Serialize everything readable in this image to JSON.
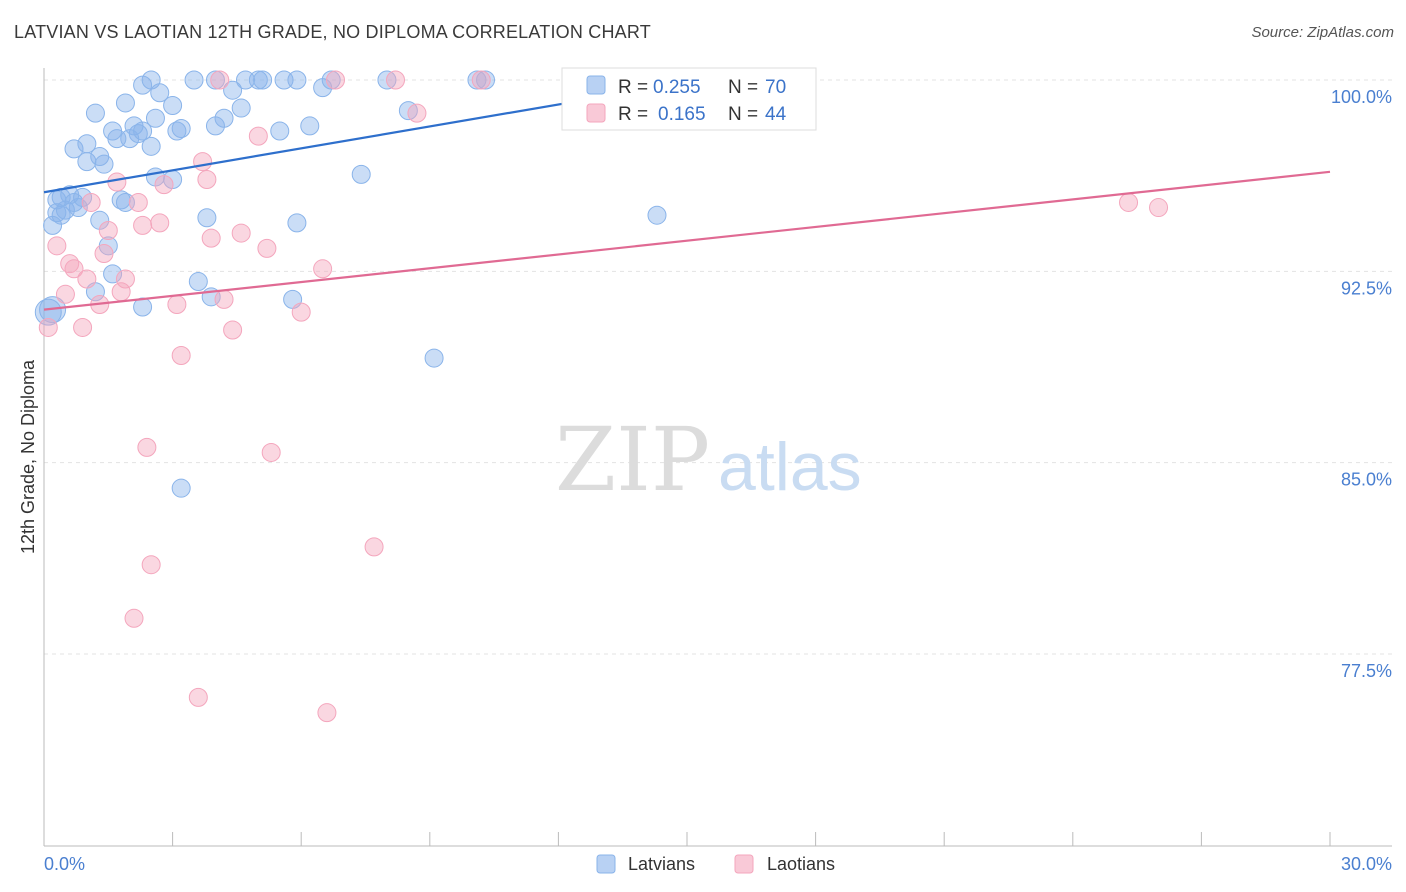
{
  "chart_data": {
    "type": "scatter",
    "title": "LATVIAN VS LAOTIAN 12TH GRADE, NO DIPLOMA CORRELATION CHART",
    "source": "Source: ZipAtlas.com",
    "xlabel": "",
    "ylabel": "12th Grade, No Diploma",
    "xlim": [
      0,
      30
    ],
    "ylim": [
      70.0,
      100.5
    ],
    "x_tick_labels": [
      "0.0%",
      "30.0%"
    ],
    "y_ticks": [
      100.0,
      92.5,
      85.0,
      77.5
    ],
    "y_tick_labels": [
      "100.0%",
      "92.5%",
      "85.0%",
      "77.5%"
    ],
    "grid": true,
    "watermark": "ZIPatlas",
    "legend": {
      "position": "top-center",
      "r_label": "R =",
      "n_label": "N =",
      "entries": [
        {
          "name": "Latvians",
          "r": "0.255",
          "n": "70"
        },
        {
          "name": "Laotians",
          "r": "0.165",
          "n": "44"
        }
      ]
    },
    "series": [
      {
        "name": "Latvians",
        "color": "#8ab4ea",
        "line_color": "#2e6fcc",
        "trend": {
          "x": [
            0.0,
            15.0
          ],
          "y": [
            95.6,
            99.9
          ]
        },
        "points": [
          [
            0.2,
            94.3
          ],
          [
            0.3,
            94.8
          ],
          [
            0.4,
            95.4
          ],
          [
            0.5,
            94.9
          ],
          [
            0.6,
            95.5
          ],
          [
            0.7,
            95.2
          ],
          [
            0.8,
            95.0
          ],
          [
            0.9,
            95.4
          ],
          [
            0.7,
            97.3
          ],
          [
            1.0,
            97.5
          ],
          [
            1.0,
            96.8
          ],
          [
            1.3,
            97.0
          ],
          [
            1.4,
            96.7
          ],
          [
            1.2,
            98.7
          ],
          [
            1.3,
            94.5
          ],
          [
            1.6,
            98.0
          ],
          [
            1.7,
            97.7
          ],
          [
            1.9,
            99.1
          ],
          [
            2.0,
            97.7
          ],
          [
            2.1,
            98.2
          ],
          [
            2.2,
            97.9
          ],
          [
            2.3,
            98.0
          ],
          [
            2.5,
            97.4
          ],
          [
            2.6,
            98.5
          ],
          [
            2.7,
            99.5
          ],
          [
            3.0,
            99.0
          ],
          [
            3.1,
            98.0
          ],
          [
            3.2,
            98.1
          ],
          [
            2.6,
            96.2
          ],
          [
            3.0,
            96.1
          ],
          [
            2.5,
            100.0
          ],
          [
            2.3,
            99.8
          ],
          [
            1.8,
            95.3
          ],
          [
            1.9,
            95.2
          ],
          [
            1.5,
            93.5
          ],
          [
            1.6,
            92.4
          ],
          [
            1.2,
            91.7
          ],
          [
            2.3,
            91.1
          ],
          [
            3.6,
            92.1
          ],
          [
            3.8,
            94.6
          ],
          [
            3.9,
            91.5
          ],
          [
            4.0,
            98.2
          ],
          [
            4.2,
            98.5
          ],
          [
            4.6,
            98.9
          ],
          [
            4.0,
            100.0
          ],
          [
            4.7,
            100.0
          ],
          [
            5.0,
            100.0
          ],
          [
            5.1,
            100.0
          ],
          [
            5.5,
            98.0
          ],
          [
            5.6,
            100.0
          ],
          [
            5.8,
            91.4
          ],
          [
            5.9,
            94.4
          ],
          [
            6.2,
            98.2
          ],
          [
            6.5,
            99.7
          ],
          [
            6.7,
            100.0
          ],
          [
            5.9,
            100.0
          ],
          [
            7.4,
            96.3
          ],
          [
            8.0,
            100.0
          ],
          [
            8.5,
            98.8
          ],
          [
            9.1,
            89.1
          ],
          [
            10.1,
            100.0
          ],
          [
            10.3,
            100.0
          ],
          [
            14.3,
            94.7
          ],
          [
            3.2,
            84.0
          ],
          [
            0.2,
            91.0
          ],
          [
            0.1,
            90.9
          ],
          [
            0.3,
            95.3
          ],
          [
            0.4,
            94.7
          ],
          [
            4.4,
            99.6
          ],
          [
            3.5,
            100.0
          ]
        ]
      },
      {
        "name": "Laotians",
        "color": "#f4a6bd",
        "line_color": "#e06a93",
        "trend": {
          "x": [
            0.0,
            30.0
          ],
          "y": [
            91.0,
            96.4
          ]
        },
        "points": [
          [
            0.1,
            90.3
          ],
          [
            0.3,
            93.5
          ],
          [
            0.5,
            91.6
          ],
          [
            0.6,
            92.8
          ],
          [
            0.7,
            92.6
          ],
          [
            0.9,
            90.3
          ],
          [
            1.0,
            92.2
          ],
          [
            1.1,
            95.2
          ],
          [
            1.3,
            91.2
          ],
          [
            1.4,
            93.2
          ],
          [
            1.5,
            94.1
          ],
          [
            1.7,
            96.0
          ],
          [
            1.8,
            91.7
          ],
          [
            1.9,
            92.2
          ],
          [
            2.2,
            95.2
          ],
          [
            2.3,
            94.3
          ],
          [
            2.4,
            85.6
          ],
          [
            2.5,
            81.0
          ],
          [
            2.7,
            94.4
          ],
          [
            2.8,
            95.9
          ],
          [
            3.1,
            91.2
          ],
          [
            3.2,
            89.2
          ],
          [
            3.7,
            96.8
          ],
          [
            3.8,
            96.1
          ],
          [
            3.9,
            93.8
          ],
          [
            4.2,
            91.4
          ],
          [
            4.4,
            90.2
          ],
          [
            4.6,
            94.0
          ],
          [
            5.0,
            97.8
          ],
          [
            5.2,
            93.4
          ],
          [
            5.3,
            85.4
          ],
          [
            6.0,
            90.9
          ],
          [
            6.5,
            92.6
          ],
          [
            6.8,
            100.0
          ],
          [
            7.7,
            81.7
          ],
          [
            8.2,
            100.0
          ],
          [
            8.7,
            98.7
          ],
          [
            10.2,
            100.0
          ],
          [
            2.1,
            78.9
          ],
          [
            3.6,
            75.8
          ],
          [
            6.6,
            75.2
          ],
          [
            25.3,
            95.2
          ],
          [
            26.0,
            95.0
          ],
          [
            4.1,
            100.0
          ]
        ]
      }
    ]
  }
}
